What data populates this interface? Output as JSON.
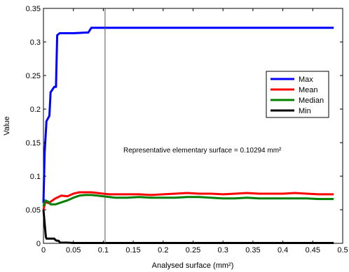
{
  "chart_data": {
    "type": "line",
    "xlabel": "Analysed surface (mm²)",
    "ylabel": "Value",
    "xlim": [
      0,
      0.5
    ],
    "ylim": [
      0,
      0.35
    ],
    "xticks": [
      "0",
      "0.05",
      "0.1",
      "0.15",
      "0.2",
      "0.25",
      "0.3",
      "0.35",
      "0.4",
      "0.45",
      "0.5"
    ],
    "yticks": [
      "0",
      "0.05",
      "0.1",
      "0.15",
      "0.2",
      "0.25",
      "0.3",
      "0.35"
    ],
    "grid": false,
    "legend_position": "right",
    "annotation": "Representative elementary surface = 0.10294 mm²",
    "rev_line_x": 0.10294,
    "series": [
      {
        "name": "Max",
        "color": "#0000ff",
        "x": [
          0,
          0.002,
          0.005,
          0.01,
          0.012,
          0.018,
          0.021,
          0.023,
          0.027,
          0.05,
          0.07,
          0.075,
          0.08,
          0.1,
          0.485
        ],
        "y": [
          0.06,
          0.135,
          0.182,
          0.19,
          0.225,
          0.233,
          0.233,
          0.31,
          0.313,
          0.313,
          0.314,
          0.314,
          0.321,
          0.321,
          0.321
        ]
      },
      {
        "name": "Mean",
        "color": "#ff0000",
        "x": [
          0,
          0.003,
          0.008,
          0.012,
          0.02,
          0.03,
          0.04,
          0.05,
          0.06,
          0.07,
          0.08,
          0.09,
          0.1,
          0.11,
          0.12,
          0.14,
          0.16,
          0.18,
          0.2,
          0.22,
          0.24,
          0.26,
          0.28,
          0.3,
          0.32,
          0.34,
          0.36,
          0.38,
          0.4,
          0.42,
          0.44,
          0.46,
          0.485
        ],
        "y": [
          0.05,
          0.062,
          0.06,
          0.062,
          0.067,
          0.071,
          0.07,
          0.074,
          0.076,
          0.076,
          0.076,
          0.075,
          0.074,
          0.073,
          0.073,
          0.073,
          0.073,
          0.072,
          0.073,
          0.074,
          0.075,
          0.074,
          0.074,
          0.073,
          0.074,
          0.075,
          0.074,
          0.074,
          0.074,
          0.075,
          0.074,
          0.073,
          0.073
        ]
      },
      {
        "name": "Median",
        "color": "#008000",
        "x": [
          0,
          0.003,
          0.008,
          0.012,
          0.02,
          0.03,
          0.04,
          0.05,
          0.06,
          0.07,
          0.08,
          0.09,
          0.1,
          0.11,
          0.12,
          0.14,
          0.16,
          0.18,
          0.2,
          0.22,
          0.24,
          0.26,
          0.28,
          0.3,
          0.32,
          0.34,
          0.36,
          0.38,
          0.4,
          0.42,
          0.44,
          0.46,
          0.485
        ],
        "y": [
          0.055,
          0.064,
          0.062,
          0.058,
          0.058,
          0.061,
          0.064,
          0.068,
          0.071,
          0.072,
          0.072,
          0.071,
          0.07,
          0.069,
          0.068,
          0.068,
          0.069,
          0.068,
          0.068,
          0.068,
          0.069,
          0.069,
          0.068,
          0.067,
          0.067,
          0.068,
          0.067,
          0.067,
          0.067,
          0.067,
          0.067,
          0.066,
          0.066
        ]
      },
      {
        "name": "Min",
        "color": "#000000",
        "x": [
          0,
          0.002,
          0.004,
          0.005,
          0.018,
          0.02,
          0.022,
          0.025,
          0.028,
          0.04,
          0.05,
          0.485
        ],
        "y": [
          0.05,
          0.03,
          0.01,
          0.007,
          0.007,
          0.005,
          0.004,
          0.004,
          0.001,
          0.001,
          0.0005,
          0.0005
        ]
      }
    ]
  }
}
